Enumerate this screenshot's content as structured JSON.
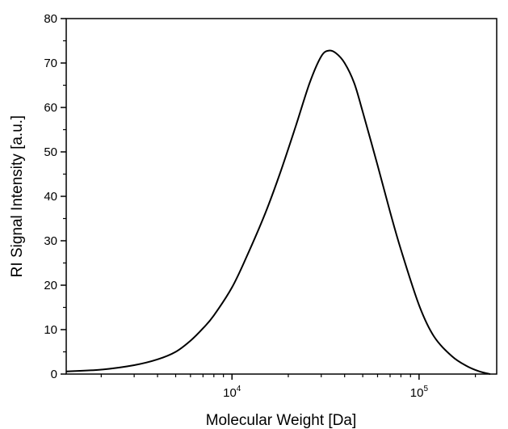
{
  "chart_data": {
    "type": "line",
    "title": "",
    "xlabel": "Molecular Weight [Da]",
    "ylabel": "RI Signal Intensity [a.u.]",
    "x_scale": "log",
    "xlim": [
      1300,
      260000
    ],
    "ylim": [
      0,
      80
    ],
    "grid": false,
    "legend": "none",
    "y_ticks": [
      "0",
      "10",
      "20",
      "30",
      "40",
      "50",
      "60",
      "70",
      "80"
    ],
    "x_ticks": [
      {
        "base": "10",
        "exp": "4",
        "value": 10000
      },
      {
        "base": "10",
        "exp": "5",
        "value": 100000
      }
    ],
    "line_color": "#000000",
    "series": [
      {
        "x": [
          1300,
          2000,
          3000,
          4000,
          5000,
          6000,
          7000,
          8000,
          10000,
          12000,
          15000,
          18000,
          22000,
          26000,
          30000,
          33000,
          36000,
          40000,
          45000,
          50000,
          60000,
          70000,
          80000,
          100000,
          120000,
          150000,
          180000,
          210000,
          240000
        ],
        "y": [
          0.6,
          1.0,
          2.0,
          3.3,
          5.0,
          7.5,
          10.3,
          13.2,
          19.5,
          26.5,
          36.0,
          45.0,
          56.0,
          65.5,
          71.5,
          72.8,
          72.2,
          70.0,
          65.5,
          59.0,
          47.0,
          36.5,
          28.0,
          15.5,
          8.5,
          4.0,
          1.8,
          0.6,
          0.0
        ]
      }
    ]
  }
}
